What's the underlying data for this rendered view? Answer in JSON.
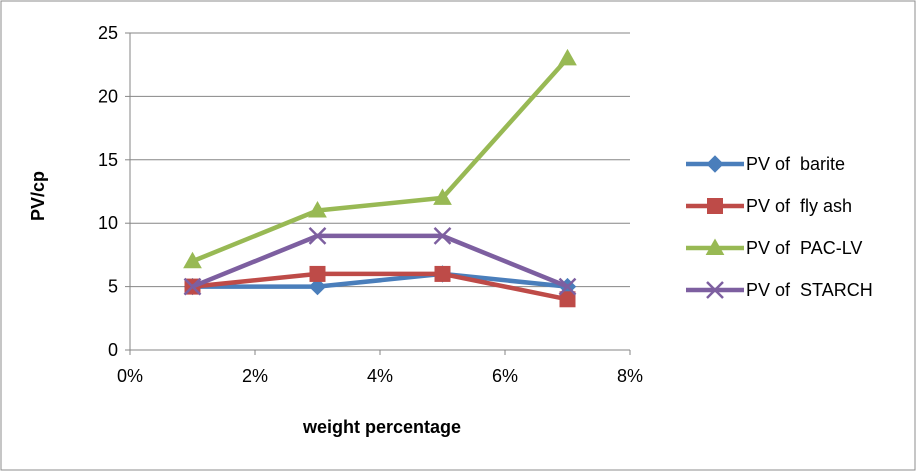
{
  "chart_data": {
    "type": "line",
    "title": "",
    "xlabel": "weight percentage",
    "ylabel": "PV/cp",
    "x": [
      0.01,
      0.03,
      0.05,
      0.07
    ],
    "xlim": [
      0,
      0.08
    ],
    "ylim": [
      0,
      25
    ],
    "x_ticks": [
      0,
      0.02,
      0.04,
      0.06,
      0.08
    ],
    "x_tick_labels": [
      "0%",
      "2%",
      "4%",
      "6%",
      "8%"
    ],
    "y_ticks": [
      0,
      5,
      10,
      15,
      20,
      25
    ],
    "y_tick_labels": [
      "0",
      "5",
      "10",
      "15",
      "20",
      "25"
    ],
    "grid": "horizontal",
    "legend_position": "right",
    "series": [
      {
        "name": "PV of  barite",
        "values": [
          5,
          5,
          6,
          5
        ],
        "color": "#4A7EBB",
        "marker": "diamond"
      },
      {
        "name": "PV of  fly ash",
        "values": [
          5,
          6,
          6,
          4
        ],
        "color": "#BE4B48",
        "marker": "square"
      },
      {
        "name": "PV of  PAC-LV",
        "values": [
          7,
          11,
          12,
          23
        ],
        "color": "#98B954",
        "marker": "triangle"
      },
      {
        "name": "PV of  STARCH",
        "values": [
          5,
          9,
          9,
          5
        ],
        "color": "#7D5FA0",
        "marker": "x"
      }
    ]
  }
}
